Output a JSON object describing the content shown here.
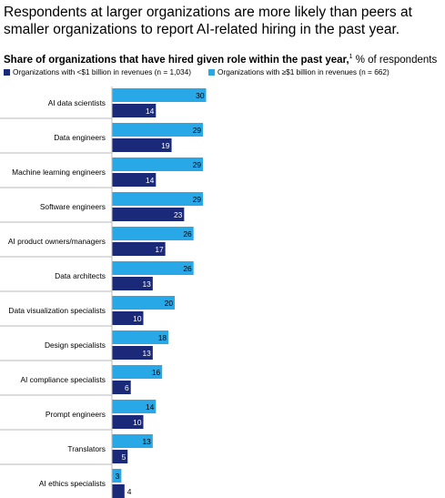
{
  "title": "Respondents at larger organizations are more likely than peers at smaller organizations to report AI-related hiring in the past year.",
  "subtitle_bold": "Share of organizations that have hired given role within the past year,",
  "subtitle_sup": "1",
  "subtitle_rest": " % of respondents",
  "colors": {
    "small": "#1b2a78",
    "large": "#29a8e8",
    "divider": "#b9b9b9"
  },
  "chart_data": {
    "type": "bar",
    "orientation": "horizontal",
    "title": "Respondents at larger organizations are more likely than peers at smaller organizations to report AI-related hiring in the past year.",
    "ylabel": "% of respondents",
    "categories": [
      "AI data scientists",
      "Data engineers",
      "Machine learning engineers",
      "Software engineers",
      "AI product owners/managers",
      "Data architects",
      "Data visualization specialists",
      "Design specialists",
      "AI compliance specialists",
      "Prompt engineers",
      "Translators",
      "AI ethics specialists"
    ],
    "series": [
      {
        "name": "Organizations with ≥$1 billion in revenues (n = 662)",
        "values": [
          30,
          29,
          29,
          29,
          26,
          26,
          20,
          18,
          16,
          14,
          13,
          3
        ]
      },
      {
        "name": "Organizations with <$1 billion in revenues (n = 1,034)",
        "values": [
          14,
          19,
          14,
          23,
          17,
          13,
          10,
          13,
          6,
          10,
          5,
          4
        ]
      }
    ],
    "legend_position": "top"
  }
}
